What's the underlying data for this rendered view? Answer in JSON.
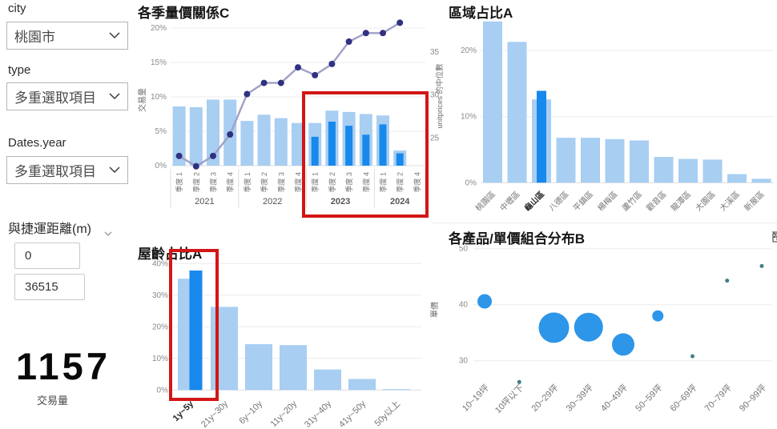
{
  "filters": {
    "city": {
      "label": "city",
      "value": "桃園市"
    },
    "type": {
      "label": "type",
      "value": "多重選取項目"
    },
    "year": {
      "label": "Dates.year",
      "value": "多重選取項目"
    },
    "distance": {
      "label": "與捷運距離(m)",
      "min": "0",
      "max": "36515"
    }
  },
  "kpi": {
    "value": "1157",
    "label": "交易量"
  },
  "colors": {
    "bar_light": "#A8CEF2",
    "bar_dark": "#1889EC",
    "line": "#9FA0C6",
    "line_marker": "#303181",
    "bubble": "#2D96E8",
    "bubble_small": "#417F80",
    "highlight_red": "#D31616",
    "grid": "#ececec",
    "axis_text": "#8a8a8a",
    "cat_text": "#757575",
    "cat_text_selected": "#2b2b2b"
  },
  "scatter_toolbar": {
    "icons": [
      "filter-icon",
      "focus-mode-icon",
      "more-options-icon"
    ]
  },
  "chart_data": [
    {
      "id": "combo",
      "type": "bar",
      "subtype": "combo-bar-line",
      "title": "各季量價關係C",
      "left_axis": {
        "label": "交易量",
        "ticks": [
          20,
          15,
          10,
          5,
          0
        ],
        "unit": "%",
        "lim": [
          0,
          20
        ]
      },
      "right_axis": {
        "label": "unitprices 的中位數",
        "ticks": [
          35,
          30,
          25
        ],
        "visible_range": [
          25,
          35
        ]
      },
      "groups": [
        {
          "year": "2021",
          "quarters": [
            "季度 1",
            "季度 2",
            "季度 3",
            "季度 4"
          ]
        },
        {
          "year": "2022",
          "quarters": [
            "季度 1",
            "季度 2",
            "季度 3",
            "季度 4"
          ]
        },
        {
          "year": "2023",
          "quarters": [
            "季度 1",
            "季度 2",
            "季度 3",
            "季度 4"
          ]
        },
        {
          "year": "2024",
          "quarters": [
            "季度 1",
            "季度 2",
            "季度 4"
          ]
        }
      ],
      "bars_light_pct": [
        8.6,
        8.5,
        9.6,
        9.6,
        6.5,
        7.4,
        6.9,
        6.2,
        6.2,
        8.0,
        7.8,
        7.5,
        7.3,
        2.2,
        null
      ],
      "bars_dark_pct": [
        null,
        null,
        null,
        null,
        null,
        null,
        null,
        null,
        4.2,
        6.4,
        5.8,
        4.5,
        6.0,
        1.8,
        null
      ],
      "line_values": [
        22.9,
        21.7,
        22.9,
        25.4,
        30.1,
        31.4,
        31.4,
        33.2,
        32.3,
        33.6,
        36.2,
        37.2,
        37.2,
        38.4,
        null
      ],
      "highlighted_years": [
        "2023",
        "2024"
      ]
    },
    {
      "id": "region",
      "type": "bar",
      "title": "區域占比A",
      "yticks": [
        20,
        10,
        0
      ],
      "unit": "%",
      "ylim": [
        0,
        26
      ],
      "categories": [
        "桃園區",
        "中壢區",
        "龜山區",
        "八德區",
        "平鎮區",
        "楊梅區",
        "蘆竹區",
        "觀音區",
        "龍潭區",
        "大園區",
        "大溪區",
        "新屋區"
      ],
      "values_light": [
        24.4,
        21.3,
        12.6,
        6.8,
        6.8,
        6.6,
        6.4,
        3.9,
        3.6,
        3.5,
        1.3,
        0.6
      ],
      "values_dark": [
        null,
        null,
        13.9,
        null,
        null,
        null,
        null,
        null,
        null,
        null,
        null,
        null
      ],
      "selected_category": "龜山區"
    },
    {
      "id": "age",
      "type": "bar",
      "title": "屋齡占比A",
      "yticks": [
        40,
        30,
        20,
        10,
        0
      ],
      "unit": "%",
      "ylim": [
        0,
        42
      ],
      "categories": [
        "1y~5y",
        "21y~30y",
        "6y~10y",
        "11y~20y",
        "31y~40y",
        "41y~50y",
        "50y以上"
      ],
      "values_light": [
        35.2,
        26.3,
        14.5,
        14.2,
        6.5,
        3.5,
        0.3
      ],
      "values_dark": [
        37.8,
        null,
        null,
        null,
        null,
        null,
        null
      ],
      "selected_category": "1y~5y"
    },
    {
      "id": "scatter",
      "type": "scatter",
      "title": "各產品/單價組合分布B",
      "ylabel": "單價",
      "yticks": [
        50,
        40,
        30
      ],
      "ylim": [
        25,
        52
      ],
      "categories": [
        "10~19坪",
        "10坪以下",
        "20~29坪",
        "30~39坪",
        "40~49坪",
        "50~59坪",
        "60~69坪",
        "70~79坪",
        "90~99坪"
      ],
      "points": [
        {
          "category": "10~19坪",
          "y": 40.6,
          "r": 9,
          "color": "#2D96E8"
        },
        {
          "category": "10坪以下",
          "y": 26.2,
          "r": 2.5,
          "color": "#417F80"
        },
        {
          "category": "20~29坪",
          "y": 35.9,
          "r": 19,
          "color": "#2D96E8"
        },
        {
          "category": "30~39坪",
          "y": 36.0,
          "r": 18,
          "color": "#2D96E8"
        },
        {
          "category": "40~49坪",
          "y": 32.9,
          "r": 14,
          "color": "#2D96E8"
        },
        {
          "category": "50~59坪",
          "y": 38.0,
          "r": 7,
          "color": "#2D96E8"
        },
        {
          "category": "60~69坪",
          "y": 30.8,
          "r": 2.5,
          "color": "#417F80"
        },
        {
          "category": "70~79坪",
          "y": 44.3,
          "r": 2.5,
          "color": "#417F80"
        },
        {
          "category": "90~99坪",
          "y": 46.9,
          "r": 2.5,
          "color": "#417F80"
        }
      ]
    }
  ]
}
